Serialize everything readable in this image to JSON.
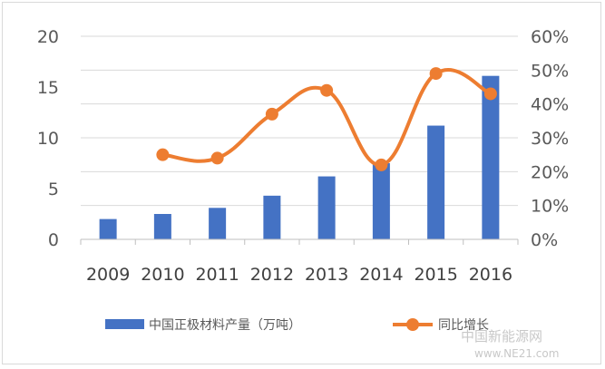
{
  "chart_data": {
    "type": "bar",
    "categories": [
      "2009",
      "2010",
      "2011",
      "2012",
      "2013",
      "2014",
      "2015",
      "2016"
    ],
    "series": [
      {
        "name": "中国正极材料产量（万吨）",
        "type": "bar",
        "axis": "left",
        "color": "#4472C4",
        "values": [
          2.0,
          2.5,
          3.1,
          4.3,
          6.2,
          7.5,
          11.2,
          16.1
        ]
      },
      {
        "name": "同比增长",
        "type": "line",
        "axis": "right",
        "color": "#ED7D31",
        "values": [
          null,
          25,
          24,
          37,
          44,
          22,
          49,
          43
        ]
      }
    ],
    "y_left": {
      "range": [
        0,
        20
      ],
      "ticks": [
        "0",
        "5",
        "10",
        "15",
        "20"
      ]
    },
    "y_right": {
      "range": [
        0,
        60
      ],
      "ticks": [
        "0%",
        "10%",
        "20%",
        "30%",
        "40%",
        "50%",
        "60%"
      ]
    },
    "grid": true,
    "legend": "bottom"
  },
  "watermark": {
    "text": "中国新能源网",
    "sub": "www.NE21.com"
  }
}
